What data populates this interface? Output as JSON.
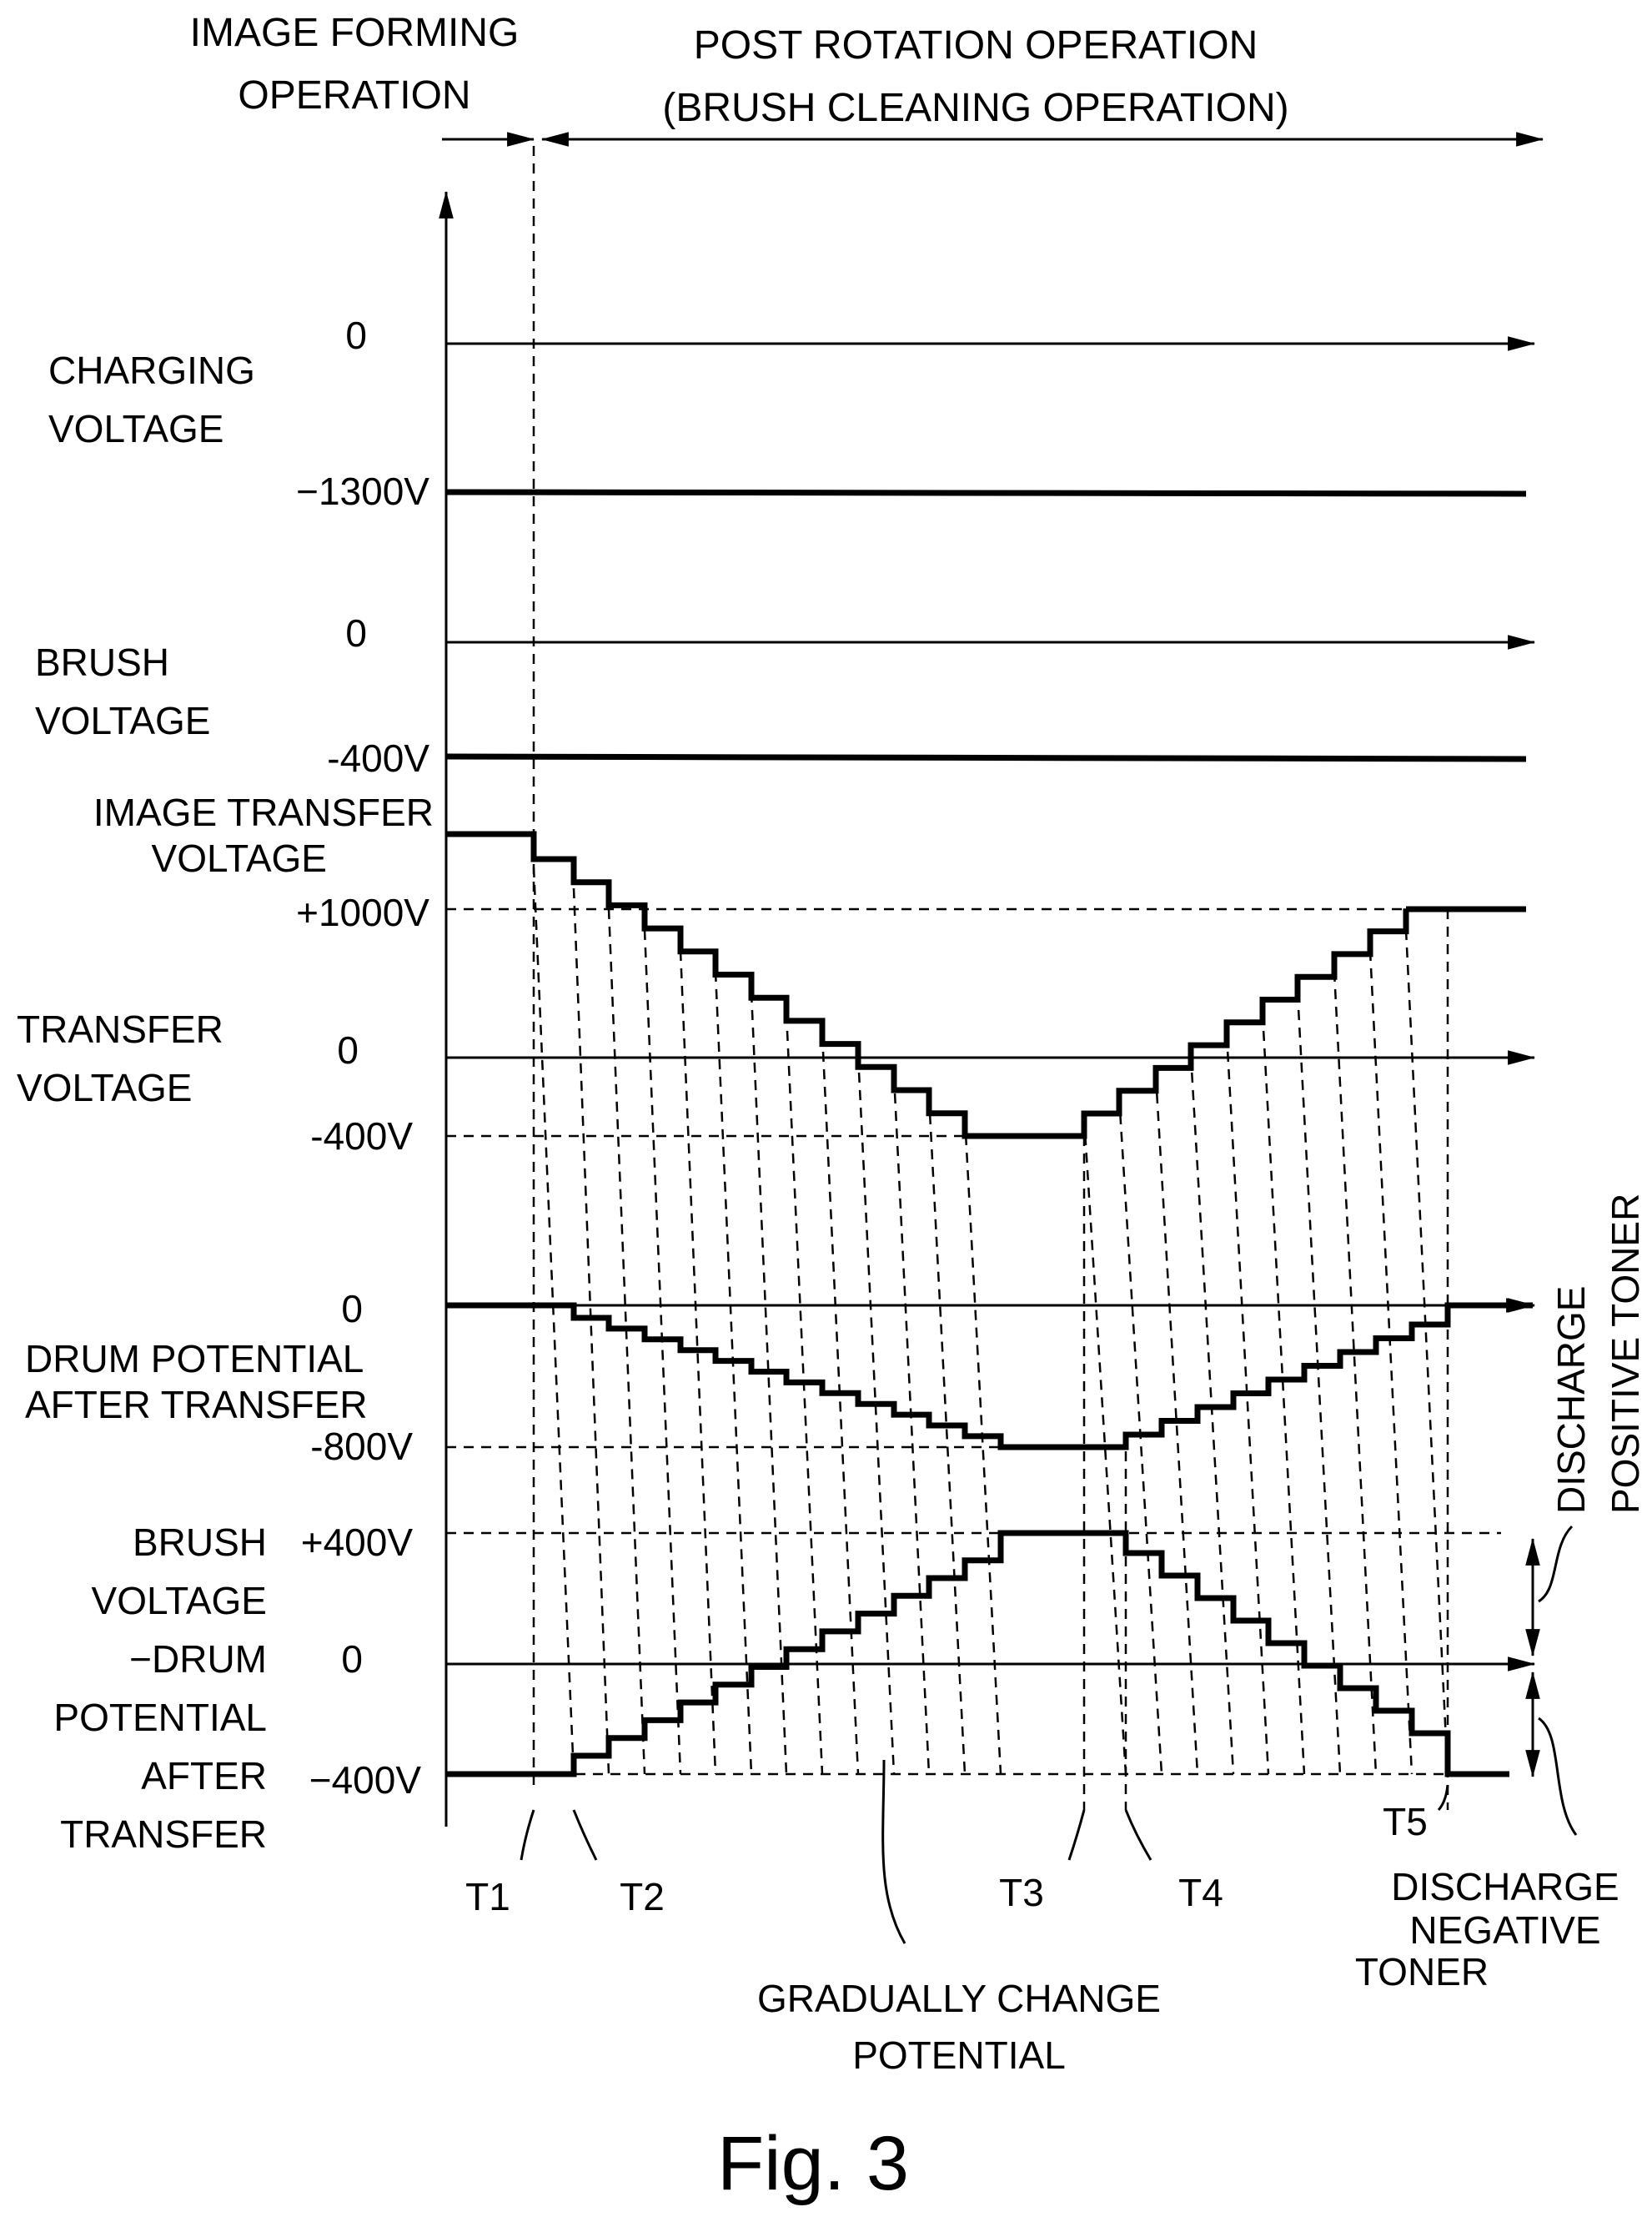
{
  "phases": {
    "image_forming": [
      "IMAGE FORMING",
      "OPERATION"
    ],
    "post_rotation": [
      "POST ROTATION OPERATION",
      "(BRUSH CLEANING OPERATION)"
    ]
  },
  "rows": {
    "charging": {
      "label": [
        "CHARGING",
        "VOLTAGE"
      ],
      "zero": "0",
      "level": "−1300V"
    },
    "brush": {
      "label": [
        "BRUSH",
        "VOLTAGE"
      ],
      "zero": "0",
      "level": "-400V"
    },
    "image_transfer": {
      "label": [
        "IMAGE TRANSFER",
        "VOLTAGE"
      ],
      "level": "+1000V"
    },
    "transfer": {
      "label": [
        "TRANSFER",
        "VOLTAGE"
      ],
      "zero": "0",
      "level": "-400V"
    },
    "drum": {
      "label": [
        "DRUM POTENTIAL",
        "AFTER TRANSFER"
      ],
      "zero": "0",
      "level": "-800V"
    },
    "diff": {
      "label": [
        "BRUSH",
        "VOLTAGE",
        "−DRUM",
        "POTENTIAL",
        "AFTER",
        "TRANSFER"
      ],
      "top": "+400V",
      "zero": "0",
      "bottom": "−400V"
    }
  },
  "times": [
    "T1",
    "T2",
    "T3",
    "T4",
    "T5"
  ],
  "annotations": {
    "discharge_positive": [
      "DISCHARGE",
      "POSITIVE TONER"
    ],
    "discharge_negative": [
      "DISCHARGE",
      "NEGATIVE",
      "TONER"
    ],
    "gradual": [
      "GRADUALLY CHANGE",
      "POTENTIAL"
    ]
  },
  "caption": "Fig. 3"
}
